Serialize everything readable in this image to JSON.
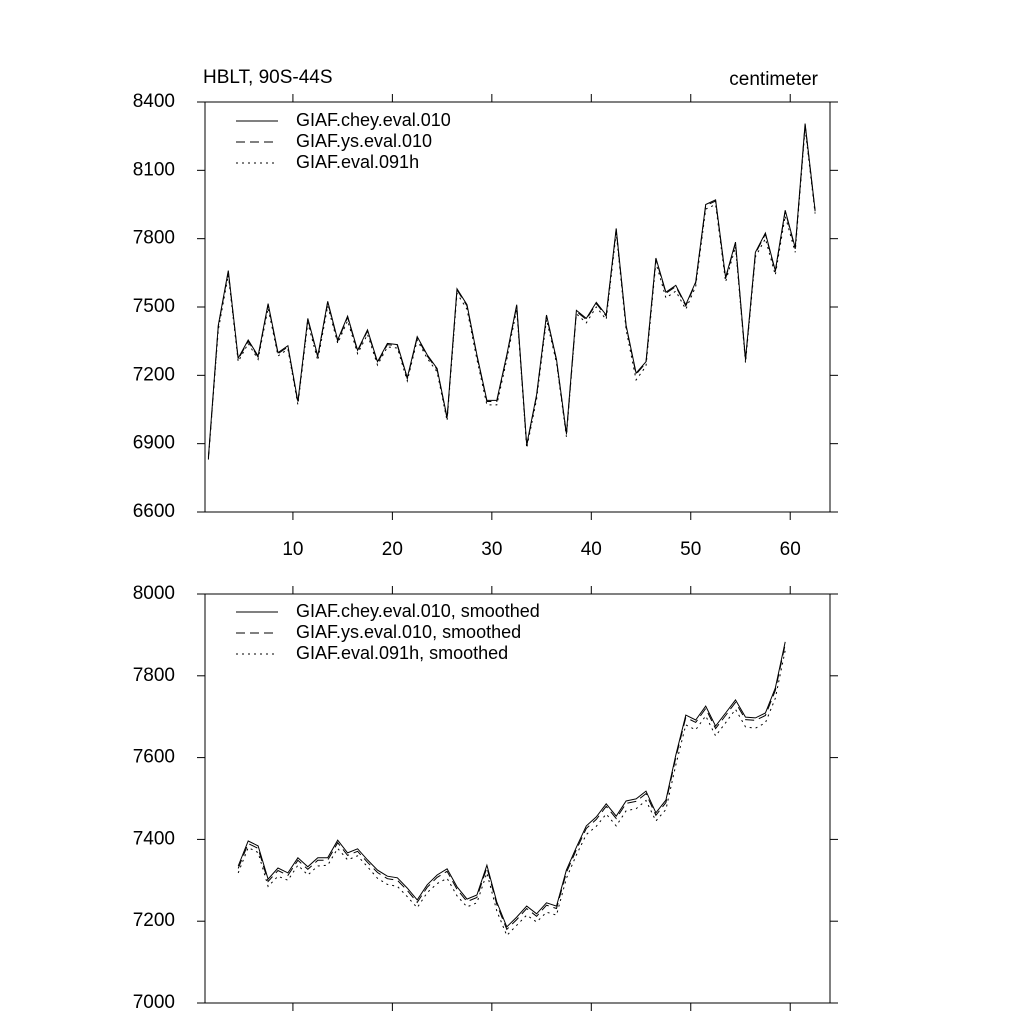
{
  "chart_data": [
    {
      "type": "line",
      "title": "HBLT, 90S-44S",
      "subtitle": "centimeter",
      "x": [
        1.5,
        2.5,
        3.5,
        4.5,
        5.5,
        6.5,
        7.5,
        8.5,
        9.5,
        10.5,
        11.5,
        12.5,
        13.5,
        14.5,
        15.5,
        16.5,
        17.5,
        18.5,
        19.5,
        20.5,
        21.5,
        22.5,
        23.5,
        24.5,
        25.5,
        26.5,
        27.5,
        28.5,
        29.5,
        30.5,
        31.5,
        32.5,
        33.5,
        34.5,
        35.5,
        36.5,
        37.5,
        38.5,
        39.5,
        40.5,
        41.5,
        42.5,
        43.5,
        44.5,
        45.5,
        46.5,
        47.5,
        48.5,
        49.5,
        50.5,
        51.5,
        52.5,
        53.5,
        54.5,
        55.5,
        56.5,
        57.5,
        58.5,
        59.5,
        60.5,
        61.5,
        62.5
      ],
      "xlim": [
        1.16,
        64.0
      ],
      "xticks": [
        10,
        20,
        30,
        40,
        50,
        60
      ],
      "ylim": [
        6600,
        8400
      ],
      "yticks": [
        6600,
        6900,
        7200,
        7500,
        7800,
        8100,
        8400
      ],
      "series": [
        {
          "name": "GIAF.chey.eval.010",
          "color": "#000000",
          "line_style": "solid",
          "values": [
            6840,
            7420,
            7660,
            7275,
            7355,
            7285,
            7515,
            7300,
            7330,
            7085,
            7450,
            7285,
            7525,
            7355,
            7460,
            7310,
            7400,
            7260,
            7340,
            7335,
            7190,
            7370,
            7290,
            7230,
            7015,
            7580,
            7510,
            7290,
            7090,
            7090,
            7290,
            7510,
            6895,
            7115,
            7465,
            7270,
            6945,
            7485,
            7450,
            7520,
            7465,
            7845,
            7420,
            7210,
            7260,
            7715,
            7565,
            7595,
            7510,
            7610,
            7950,
            7970,
            7630,
            7785,
            7270,
            7740,
            7825,
            7660,
            7925,
            7760,
            8305,
            7925
          ]
        },
        {
          "name": "GIAF.ys.eval.010",
          "color": "#000000",
          "line_style": "dashed",
          "values": [
            6835,
            7415,
            7655,
            7270,
            7350,
            7280,
            7510,
            7295,
            7325,
            7080,
            7445,
            7280,
            7520,
            7350,
            7455,
            7305,
            7395,
            7255,
            7335,
            7330,
            7185,
            7365,
            7285,
            7225,
            7010,
            7575,
            7505,
            7285,
            7085,
            7085,
            7285,
            7505,
            6890,
            7110,
            7460,
            7265,
            6940,
            7480,
            7445,
            7515,
            7460,
            7840,
            7415,
            7205,
            7255,
            7710,
            7560,
            7590,
            7505,
            7605,
            7945,
            7965,
            7625,
            7780,
            7265,
            7735,
            7820,
            7655,
            7920,
            7755,
            8300,
            7920
          ]
        },
        {
          "name": "GIAF.eval.091h",
          "color": "#000000",
          "line_style": "dotted",
          "values": [
            6830,
            7400,
            7640,
            7260,
            7340,
            7270,
            7495,
            7285,
            7315,
            7070,
            7430,
            7265,
            7505,
            7340,
            7440,
            7295,
            7380,
            7245,
            7325,
            7320,
            7175,
            7355,
            7275,
            7215,
            7000,
            7560,
            7490,
            7270,
            7070,
            7070,
            7270,
            7490,
            6880,
            7095,
            7445,
            7255,
            6930,
            7470,
            7430,
            7500,
            7445,
            7825,
            7400,
            7180,
            7240,
            7695,
            7540,
            7570,
            7490,
            7590,
            7930,
            7950,
            7610,
            7765,
            7255,
            7720,
            7800,
            7640,
            7900,
            7740,
            8285,
            7910
          ]
        }
      ]
    },
    {
      "type": "line",
      "x": [
        1.5,
        2.5,
        3.5,
        4.5,
        5.5,
        6.5,
        7.5,
        8.5,
        9.5,
        10.5,
        11.5,
        12.5,
        13.5,
        14.5,
        15.5,
        16.5,
        17.5,
        18.5,
        19.5,
        20.5,
        21.5,
        22.5,
        23.5,
        24.5,
        25.5,
        26.5,
        27.5,
        28.5,
        29.5,
        30.5,
        31.5,
        32.5,
        33.5,
        34.5,
        35.5,
        36.5,
        37.5,
        38.5,
        39.5,
        40.5,
        41.5,
        42.5,
        43.5,
        44.5,
        45.5,
        46.5,
        47.5,
        48.5,
        49.5,
        50.5,
        51.5,
        52.5,
        53.5,
        54.5,
        55.5,
        56.5,
        57.5,
        58.5,
        59.5,
        60.5,
        61.5,
        62.5
      ],
      "xlim": [
        1.16,
        64.0
      ],
      "xticks": [
        10,
        20,
        30,
        40,
        50,
        60
      ],
      "ylim": [
        7000,
        8000
      ],
      "yticks": [
        7000,
        7200,
        7400,
        7600,
        7800,
        8000
      ],
      "series": [
        {
          "name": "GIAF.chey.eval.010, smoothed",
          "color": "#000000",
          "line_style": "solid",
          "values": [
            null,
            null,
            null,
            7335,
            7396,
            7384,
            7303,
            7330,
            7318,
            7355,
            7333,
            7355,
            7355,
            7398,
            7367,
            7377,
            7350,
            7325,
            7310,
            7306,
            7281,
            7252,
            7289,
            7313,
            7328,
            7284,
            7254,
            7264,
            7337,
            7247,
            7186,
            7210,
            7237,
            7218,
            7245,
            7237,
            7325,
            7381,
            7433,
            7455,
            7487,
            7457,
            7494,
            7499,
            7518,
            7465,
            7496,
            7606,
            7704,
            7692,
            7726,
            7677,
            7709,
            7741,
            7699,
            7697,
            7709,
            7770,
            7883,
            null,
            null,
            null
          ]
        },
        {
          "name": "GIAF.ys.eval.010, smoothed",
          "color": "#000000",
          "line_style": "dashed",
          "values": [
            null,
            null,
            null,
            7329,
            7390,
            7378,
            7297,
            7324,
            7312,
            7349,
            7327,
            7349,
            7349,
            7392,
            7361,
            7371,
            7344,
            7319,
            7304,
            7300,
            7275,
            7246,
            7283,
            7307,
            7322,
            7278,
            7248,
            7258,
            7331,
            7241,
            7180,
            7204,
            7231,
            7212,
            7239,
            7231,
            7319,
            7375,
            7427,
            7449,
            7481,
            7451,
            7488,
            7493,
            7512,
            7459,
            7490,
            7600,
            7698,
            7686,
            7720,
            7671,
            7703,
            7735,
            7693,
            7691,
            7703,
            7764,
            7877,
            null,
            null,
            null
          ]
        },
        {
          "name": "GIAF.eval.091h, smoothed",
          "color": "#000000",
          "line_style": "dotted",
          "values": [
            null,
            null,
            null,
            7318,
            7380,
            7368,
            7285,
            7310,
            7300,
            7337,
            7313,
            7335,
            7337,
            7378,
            7350,
            7360,
            7333,
            7305,
            7290,
            7285,
            7260,
            7233,
            7270,
            7292,
            7305,
            7262,
            7235,
            7245,
            7318,
            7225,
            7165,
            7190,
            7215,
            7198,
            7222,
            7215,
            7305,
            7362,
            7412,
            7432,
            7462,
            7433,
            7470,
            7475,
            7495,
            7445,
            7473,
            7582,
            7680,
            7668,
            7702,
            7653,
            7685,
            7718,
            7675,
            7672,
            7685,
            7745,
            7862,
            null,
            null,
            null
          ]
        }
      ]
    }
  ]
}
